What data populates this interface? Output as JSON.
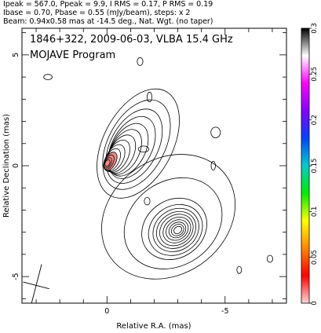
{
  "header": {
    "line1": "Ipeak = 567.0, Ppeak = 9.9, I RMS = 0.17, P RMS = 0.19",
    "line2": "Ibase = 0.70, Pbase = 0.55 (mJy/beam), steps: x 2",
    "line3": "Beam: 0.94x0.58 mas at -14.5 deg., Nat. Wgt. (no taper)"
  },
  "chart_data": {
    "type": "contour",
    "title": "1846+322, 2009-06-03, VLBA 15.4 GHz",
    "subtitle": "MOJAVE Program",
    "xlabel": "Relative R.A. (mas)",
    "ylabel": "Relative Declination (mas)",
    "xlim": [
      3.6,
      -7.6
    ],
    "ylim": [
      -6.2,
      6.2
    ],
    "x_ticks": [
      0,
      -5
    ],
    "x_tick_labels": [
      "0",
      "-5"
    ],
    "y_ticks": [
      5,
      0,
      -5
    ],
    "y_tick_labels": [
      "5",
      "0",
      "-5"
    ],
    "grid": false,
    "components": [
      {
        "name": "core",
        "x": 0.0,
        "y": 0.1,
        "levels_a": [
          0.15,
          0.24,
          0.33,
          0.42,
          0.52,
          0.62,
          0.74,
          0.88,
          1.03,
          1.2,
          1.42,
          1.7,
          2.05,
          2.5
        ],
        "levels_b": [
          0.1,
          0.14,
          0.19,
          0.25,
          0.31,
          0.38,
          0.45,
          0.54,
          0.64,
          0.76,
          0.9,
          1.07,
          1.28,
          1.56
        ],
        "angle_deg": -62,
        "offsets": [
          [
            -0.02,
            0.02
          ],
          [
            -0.04,
            0.03
          ],
          [
            -0.08,
            0.06
          ],
          [
            -0.14,
            0.1
          ],
          [
            -0.22,
            0.16
          ],
          [
            -0.33,
            0.24
          ],
          [
            -0.46,
            0.33
          ],
          [
            -0.6,
            0.42
          ],
          [
            -0.75,
            0.52
          ],
          [
            -0.9,
            0.62
          ],
          [
            -1.05,
            0.72
          ],
          [
            -1.15,
            0.78
          ],
          [
            -1.25,
            0.85
          ],
          [
            -1.32,
            0.9
          ]
        ]
      },
      {
        "name": "jet-knot",
        "x": -3.0,
        "y": -2.9,
        "levels_a": [
          0.18,
          0.28,
          0.38,
          0.5,
          0.62,
          0.75,
          0.88,
          1.02,
          1.2,
          1.45,
          2.2,
          3.0
        ],
        "levels_b": [
          0.15,
          0.24,
          0.33,
          0.43,
          0.54,
          0.66,
          0.78,
          0.92,
          1.08,
          1.3,
          1.9,
          2.6
        ],
        "angle_deg": -35,
        "offsets": [
          [
            0,
            0
          ],
          [
            0.01,
            0
          ],
          [
            0.02,
            0
          ],
          [
            0.03,
            0
          ],
          [
            0.04,
            0
          ],
          [
            0.06,
            0
          ],
          [
            0.07,
            0
          ],
          [
            0.08,
            0
          ],
          [
            0.1,
            0
          ],
          [
            0.15,
            0.05
          ],
          [
            0.2,
            0.3
          ],
          [
            0.4,
            0.6
          ]
        ]
      }
    ],
    "noise_islands": [
      {
        "x": 2.5,
        "y": 4.0,
        "a": 0.18,
        "b": 0.12
      },
      {
        "x": -1.4,
        "y": 4.7,
        "a": 0.12,
        "b": 0.18
      },
      {
        "x": -1.8,
        "y": 3.1,
        "a": 0.1,
        "b": 0.22
      },
      {
        "x": -4.6,
        "y": 1.5,
        "a": 0.2,
        "b": 0.24
      },
      {
        "x": -1.55,
        "y": 0.75,
        "a": 0.22,
        "b": 0.14
      },
      {
        "x": -4.5,
        "y": 0.0,
        "a": 0.09,
        "b": 0.2
      },
      {
        "x": -1.7,
        "y": -1.6,
        "a": 0.12,
        "b": 0.17
      },
      {
        "x": -5.6,
        "y": -4.7,
        "a": 0.1,
        "b": 0.16
      },
      {
        "x": -6.9,
        "y": -4.2,
        "a": 0.12,
        "b": 0.16
      }
    ],
    "beam": {
      "x": 3.0,
      "y": -5.4,
      "major": 0.94,
      "minor": 0.58,
      "pa_deg": -14.5
    },
    "fill_color": "#f28a8a",
    "colorbar": {
      "min": 0,
      "max": 0.3,
      "ticks": [
        0,
        0.05,
        0.1,
        0.15,
        0.2,
        0.25,
        0.3
      ],
      "tick_labels": [
        "0",
        "0.05",
        "0.1",
        "0.15",
        "0.2",
        "0.25",
        "0.3"
      ],
      "colors": [
        "#ffd8d8",
        "#ff0000",
        "#ff8800",
        "#ffff00",
        "#00ee00",
        "#00cccc",
        "#0044ff",
        "#8800ff",
        "#ff00ff",
        "#ffffff",
        "#000000"
      ]
    }
  }
}
